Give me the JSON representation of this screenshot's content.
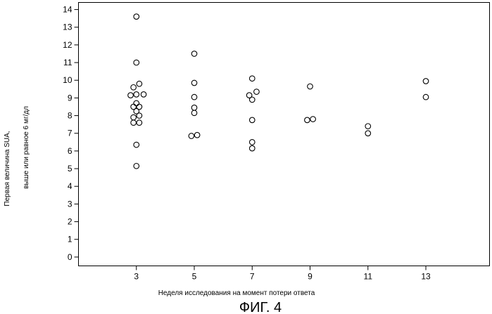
{
  "figure_caption": "ФИГ. 4",
  "chart_data": {
    "type": "scatter",
    "title": "",
    "xlabel": "Неделя исследования на момент потери ответа",
    "ylabel": [
      "Первая величина SUA,",
      "выше или равное 6 мг/дл"
    ],
    "xticks": [
      3,
      5,
      7,
      9,
      11,
      13
    ],
    "yticks": [
      0,
      1,
      2,
      3,
      4,
      5,
      6,
      7,
      8,
      9,
      10,
      11,
      12,
      13,
      14
    ],
    "xlim": [
      1,
      15.2
    ],
    "ylim": [
      -0.5,
      14.4
    ],
    "grid": false,
    "marker": "open-circle",
    "points": [
      {
        "x": 3,
        "y": 13.6
      },
      {
        "x": 3,
        "y": 11.0
      },
      {
        "x": 3.1,
        "y": 9.8
      },
      {
        "x": 2.9,
        "y": 9.6
      },
      {
        "x": 2.8,
        "y": 9.15
      },
      {
        "x": 3.0,
        "y": 9.2
      },
      {
        "x": 3.25,
        "y": 9.2
      },
      {
        "x": 3.0,
        "y": 8.7
      },
      {
        "x": 2.9,
        "y": 8.5
      },
      {
        "x": 3.1,
        "y": 8.5
      },
      {
        "x": 3.0,
        "y": 8.25
      },
      {
        "x": 3.1,
        "y": 8.0
      },
      {
        "x": 2.9,
        "y": 7.9
      },
      {
        "x": 2.9,
        "y": 7.6
      },
      {
        "x": 3.1,
        "y": 7.6
      },
      {
        "x": 3.0,
        "y": 6.35
      },
      {
        "x": 3.0,
        "y": 5.15
      },
      {
        "x": 5.0,
        "y": 11.5
      },
      {
        "x": 5.0,
        "y": 9.85
      },
      {
        "x": 5.0,
        "y": 9.05
      },
      {
        "x": 5.0,
        "y": 8.45
      },
      {
        "x": 5.0,
        "y": 8.15
      },
      {
        "x": 4.9,
        "y": 6.85
      },
      {
        "x": 5.1,
        "y": 6.9
      },
      {
        "x": 7.0,
        "y": 10.1
      },
      {
        "x": 7.15,
        "y": 9.35
      },
      {
        "x": 6.9,
        "y": 9.15
      },
      {
        "x": 7.0,
        "y": 8.9
      },
      {
        "x": 7.0,
        "y": 7.75
      },
      {
        "x": 7.0,
        "y": 6.5
      },
      {
        "x": 7.0,
        "y": 6.15
      },
      {
        "x": 9.0,
        "y": 9.65
      },
      {
        "x": 8.9,
        "y": 7.75
      },
      {
        "x": 9.1,
        "y": 7.8
      },
      {
        "x": 11.0,
        "y": 7.4
      },
      {
        "x": 11.0,
        "y": 7.0
      },
      {
        "x": 13.0,
        "y": 9.95
      },
      {
        "x": 13.0,
        "y": 9.05
      }
    ]
  }
}
